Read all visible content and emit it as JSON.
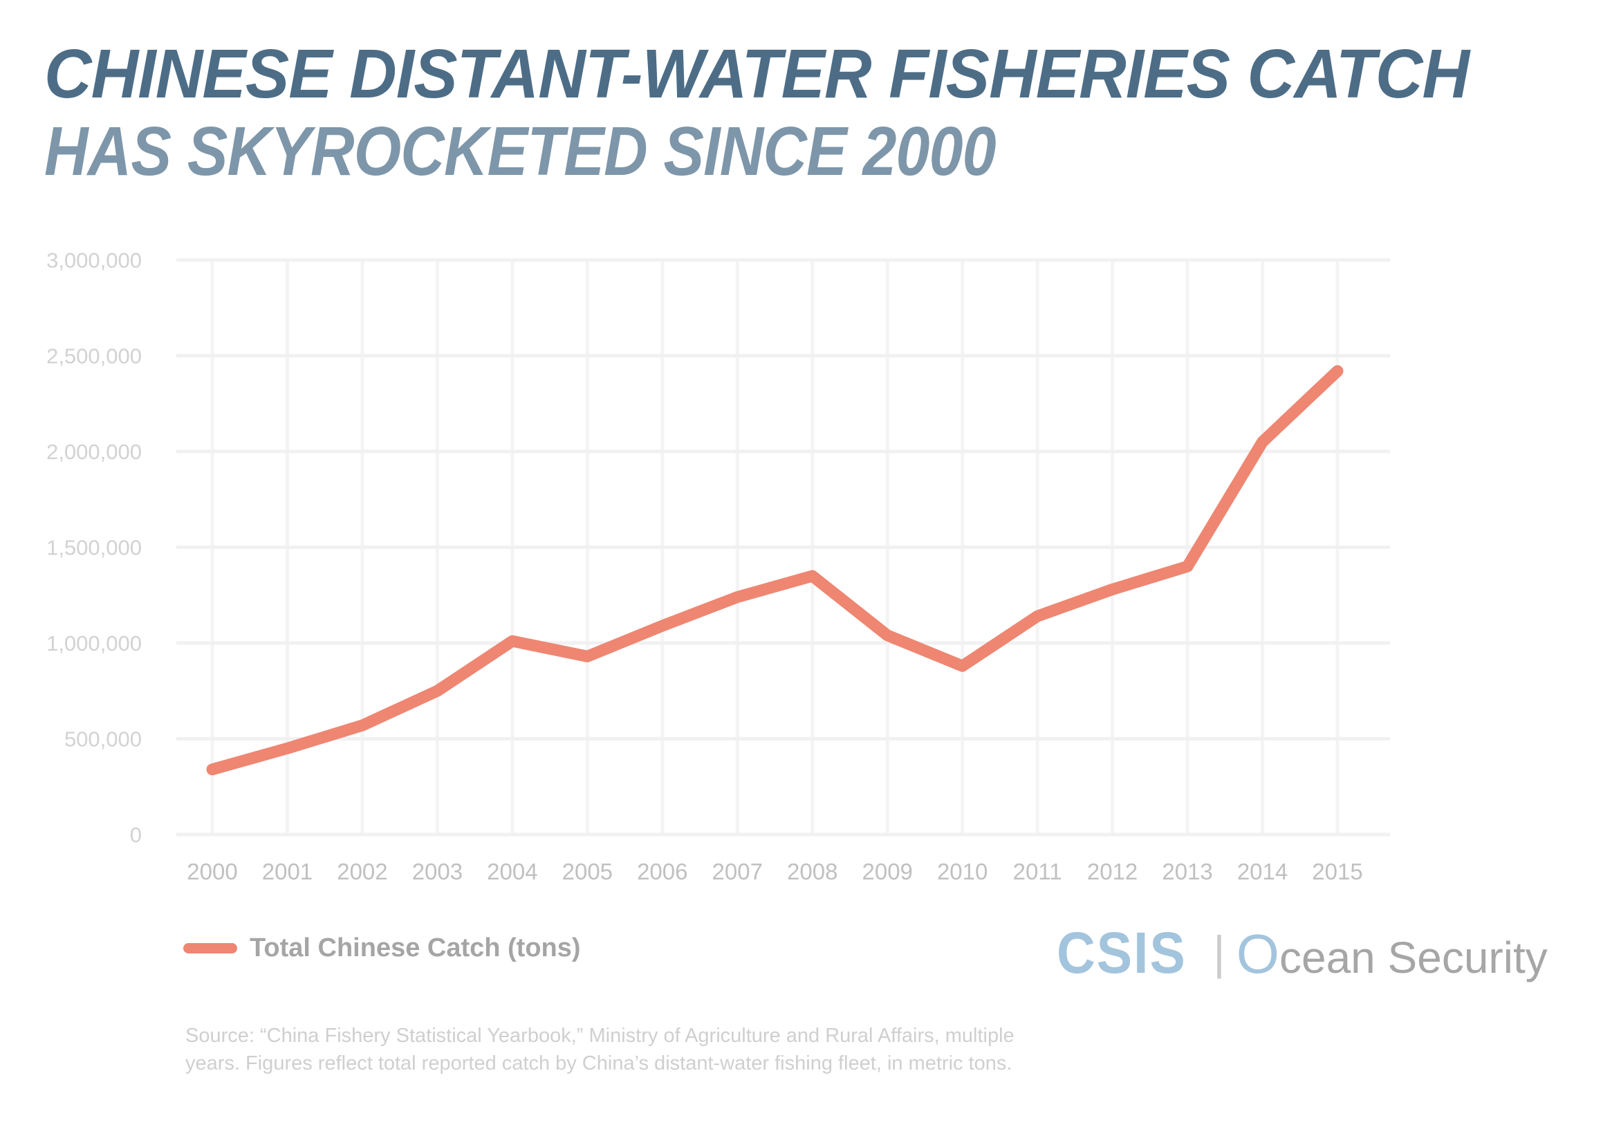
{
  "title": {
    "line1": "CHINESE DISTANT-WATER FISHERIES CATCH",
    "line2": "HAS SKYROCKETED SINCE 2000"
  },
  "legend": {
    "label": "Total Chinese Catch (tons)"
  },
  "logo": {
    "csis": "CSIS",
    "divider": "|",
    "program_initial": "O",
    "program_rest": "cean Security"
  },
  "source": {
    "line1": "Source: “China Fishery Statistical Yearbook,” Ministry of Agriculture and Rural Affairs, multiple",
    "line2": "years. Figures reflect total reported catch by China’s distant-water fishing fleet, in metric tons."
  },
  "colors": {
    "line": "#EE8672",
    "grid_horizontal": "#F1F1F1",
    "grid_vertical": "#F4F4F4",
    "title_primary": "#4D6D87",
    "title_secondary": "#7E96A9",
    "y_tick_label": "#D2D2D2",
    "x_tick_label": "#C0C0C0",
    "legend_text": "#A5A5A5",
    "source_text": "#CFCFCF",
    "logo_blue": "#A3C4DD",
    "logo_gray": "#A6A6A6"
  },
  "chart_data": {
    "type": "line",
    "title": "Chinese distant-water fisheries catch has skyrocketed since 2000",
    "x": [
      2000,
      2001,
      2002,
      2003,
      2004,
      2005,
      2006,
      2007,
      2008,
      2009,
      2010,
      2011,
      2012,
      2013,
      2014,
      2015
    ],
    "series": [
      {
        "name": "Total Chinese Catch (tons)",
        "values": [
          340000,
          450000,
          570000,
          750000,
          1010000,
          930000,
          1090000,
          1240000,
          1350000,
          1040000,
          880000,
          1140000,
          1280000,
          1400000,
          2050000,
          2420000
        ]
      }
    ],
    "xlabel": "",
    "ylabel": "",
    "ylim": [
      0,
      3000000
    ],
    "ytick_step": 500000,
    "ytick_labels": [
      "0",
      "500,000",
      "1,000,000",
      "1,500,000",
      "2,000,000",
      "2,500,000",
      "3,000,000"
    ],
    "grid": true,
    "legend_position": "bottom-left"
  }
}
